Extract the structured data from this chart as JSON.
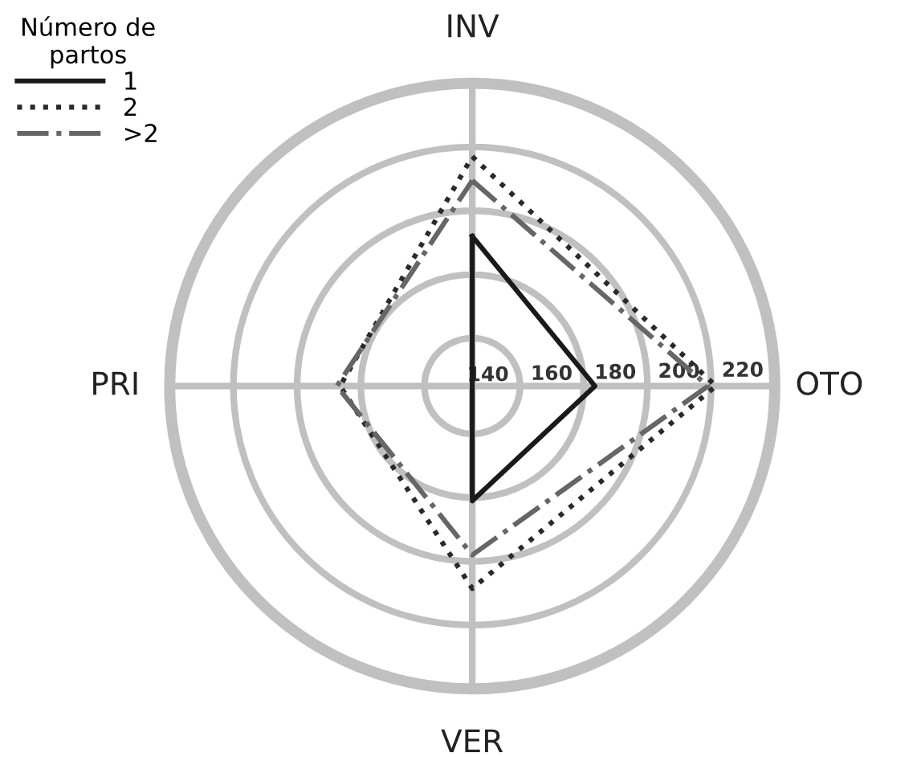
{
  "chart_data": {
    "type": "radar",
    "categories": [
      "INV",
      "OTO",
      "VER",
      "PRI"
    ],
    "legend_title": "Número de\npartos",
    "legend": "top left",
    "grid": true,
    "marker": "none",
    "ylim": [
      125,
      220
    ],
    "yticks": [
      140,
      160,
      180,
      200,
      220
    ],
    "series": [
      {
        "name": "1",
        "color": "#1a1a1a",
        "line_style": "solid",
        "values": [
          172,
          163.5,
          161,
          125
        ]
      },
      {
        "name": "2",
        "color": "#2a2a2a",
        "line_style": "dotted",
        "values": [
          197,
          201.5,
          188.5,
          166.5
        ]
      },
      {
        "name": ">2",
        "color": "#666666",
        "line_style": "dashdot",
        "values": [
          189.5,
          199,
          178,
          167.5
        ]
      }
    ]
  }
}
